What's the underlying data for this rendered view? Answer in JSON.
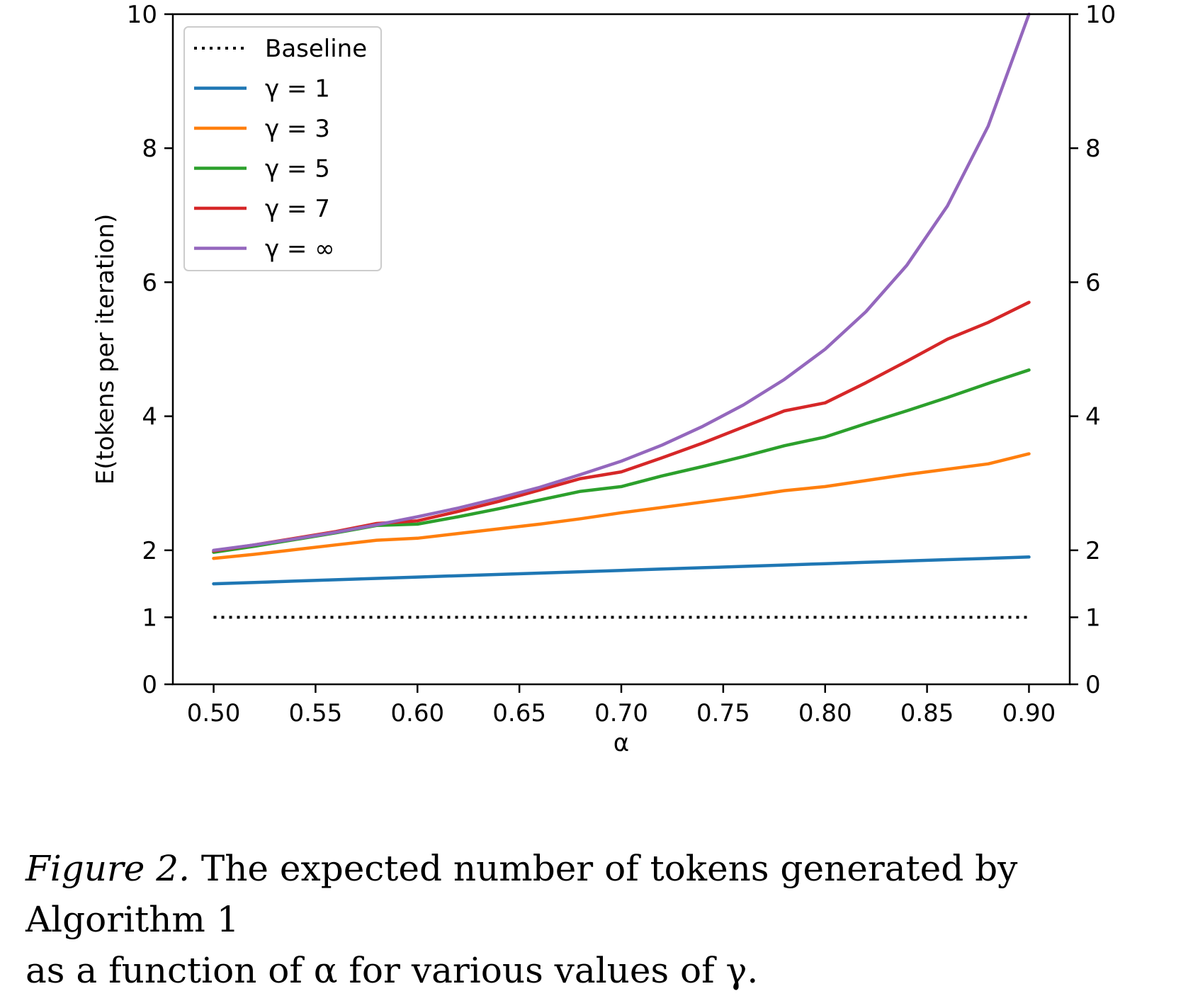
{
  "chart_data": {
    "type": "line",
    "xlabel": "α",
    "ylabel": "E(tokens per iteration)",
    "xlim": [
      0.48,
      0.92
    ],
    "ylim": [
      0,
      10
    ],
    "xticks": [
      0.5,
      0.55,
      0.6,
      0.65,
      0.7,
      0.75,
      0.8,
      0.85,
      0.9
    ],
    "xtick_labels": [
      "0.50",
      "0.55",
      "0.60",
      "0.65",
      "0.70",
      "0.75",
      "0.80",
      "0.85",
      "0.90"
    ],
    "yticks": [
      0,
      1,
      2,
      4,
      6,
      8,
      10
    ],
    "ytick_labels": [
      "0",
      "1",
      "2",
      "4",
      "6",
      "8",
      "10"
    ],
    "secondary_y_axis": true,
    "grid": false,
    "legend_position": "top-left",
    "x": [
      0.5,
      0.52,
      0.54,
      0.56,
      0.58,
      0.6,
      0.62,
      0.64,
      0.66,
      0.68,
      0.7,
      0.72,
      0.74,
      0.76,
      0.78,
      0.8,
      0.82,
      0.84,
      0.86,
      0.88,
      0.9
    ],
    "series": [
      {
        "name": "Baseline",
        "color": "#000000",
        "style": "dotted",
        "values": [
          1,
          1,
          1,
          1,
          1,
          1,
          1,
          1,
          1,
          1,
          1,
          1,
          1,
          1,
          1,
          1,
          1,
          1,
          1,
          1,
          1
        ]
      },
      {
        "name": "γ = 1",
        "color": "#1f77b4",
        "style": "solid",
        "values": [
          1.5,
          1.52,
          1.54,
          1.56,
          1.58,
          1.6,
          1.62,
          1.64,
          1.66,
          1.68,
          1.7,
          1.72,
          1.74,
          1.76,
          1.78,
          1.8,
          1.82,
          1.84,
          1.86,
          1.88,
          1.9
        ]
      },
      {
        "name": "γ = 3",
        "color": "#ff7f0e",
        "style": "solid",
        "values": [
          1.88,
          1.94,
          2.01,
          2.08,
          2.15,
          2.18,
          2.25,
          2.32,
          2.39,
          2.47,
          2.56,
          2.64,
          2.72,
          2.8,
          2.89,
          2.95,
          3.04,
          3.13,
          3.21,
          3.29,
          3.44
        ]
      },
      {
        "name": "γ = 5",
        "color": "#2ca02c",
        "style": "solid",
        "values": [
          1.97,
          2.06,
          2.16,
          2.26,
          2.37,
          2.39,
          2.5,
          2.62,
          2.75,
          2.88,
          2.95,
          3.11,
          3.25,
          3.4,
          3.56,
          3.69,
          3.89,
          4.08,
          4.28,
          4.49,
          4.69
        ]
      },
      {
        "name": "γ = 7",
        "color": "#d62728",
        "style": "solid",
        "values": [
          1.99,
          2.08,
          2.18,
          2.28,
          2.4,
          2.44,
          2.58,
          2.73,
          2.9,
          3.07,
          3.17,
          3.38,
          3.6,
          3.84,
          4.08,
          4.2,
          4.5,
          4.82,
          5.15,
          5.4,
          5.7
        ]
      },
      {
        "name": "γ = ∞",
        "color": "#9467bd",
        "style": "solid",
        "values": [
          2.0,
          2.08,
          2.17,
          2.27,
          2.38,
          2.5,
          2.63,
          2.78,
          2.94,
          3.13,
          3.33,
          3.57,
          3.85,
          4.17,
          4.55,
          5.0,
          5.56,
          6.25,
          7.14,
          8.33,
          10.0
        ]
      }
    ]
  },
  "caption": {
    "figure_label": "Figure 2.",
    "line1_rest": " The expected number of tokens generated by Algorithm 1",
    "line2": "as a function of α for various values of γ."
  }
}
